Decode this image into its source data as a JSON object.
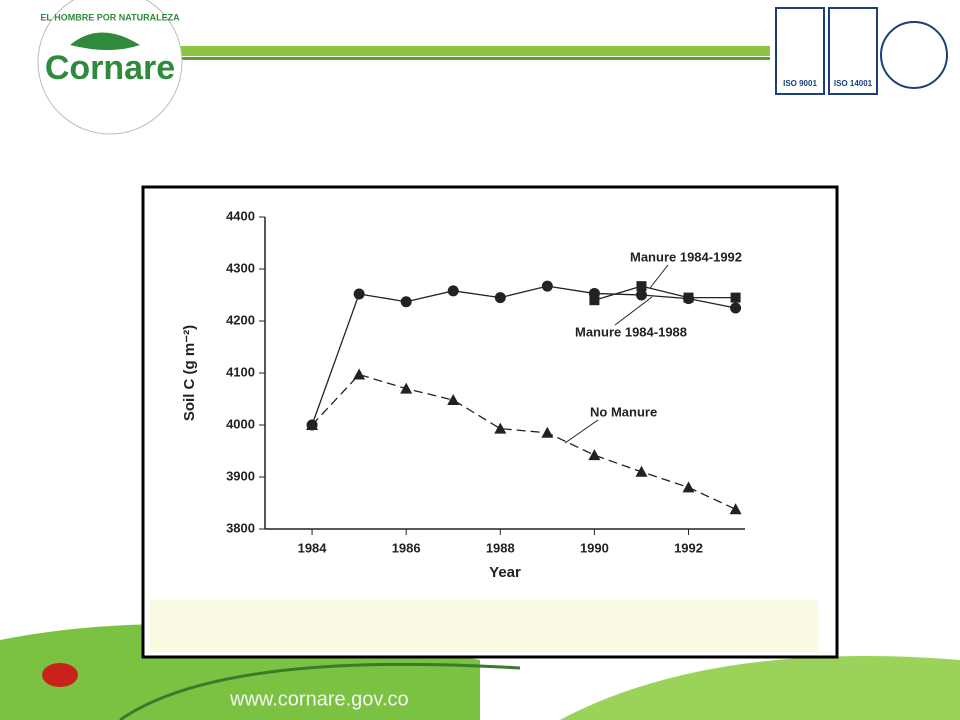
{
  "header": {
    "logo_text": "Cornare",
    "logo_motto": "EL HOMBRE POR NATURALEZA",
    "cert1": "ISO 9001",
    "cert2": "ISO 14001"
  },
  "footer": {
    "url": "www.cornare.gov.co"
  },
  "chart_data": {
    "type": "line",
    "xlabel": "Year",
    "ylabel": "Soil C (g m⁻²)",
    "x": [
      1984,
      1985,
      1986,
      1987,
      1988,
      1989,
      1990,
      1991,
      1992,
      1993
    ],
    "xlim": [
      1983,
      1993.2
    ],
    "xticks": [
      1984,
      1986,
      1988,
      1990,
      1992
    ],
    "ylim": [
      3800,
      4400
    ],
    "yticks": [
      3800,
      3900,
      4000,
      4100,
      4200,
      4300,
      4400
    ],
    "series": [
      {
        "name": "Manure 1984-1988",
        "color": "#222222",
        "marker": "circle",
        "dash": false,
        "values": [
          4000,
          4252,
          4237,
          4258,
          4245,
          4267,
          4253,
          4250,
          4243,
          4225
        ]
      },
      {
        "name": "Manure 1984-1992",
        "color": "#222222",
        "marker": "square",
        "dash": false,
        "values": [
          null,
          null,
          null,
          null,
          null,
          null,
          4240,
          4267,
          4245,
          4245
        ]
      },
      {
        "name": "No Manure",
        "color": "#222222",
        "marker": "triangle",
        "dash": true,
        "values": [
          4000,
          4097,
          4070,
          4048,
          3993,
          3985,
          3942,
          3910,
          3880,
          3838
        ]
      }
    ]
  }
}
